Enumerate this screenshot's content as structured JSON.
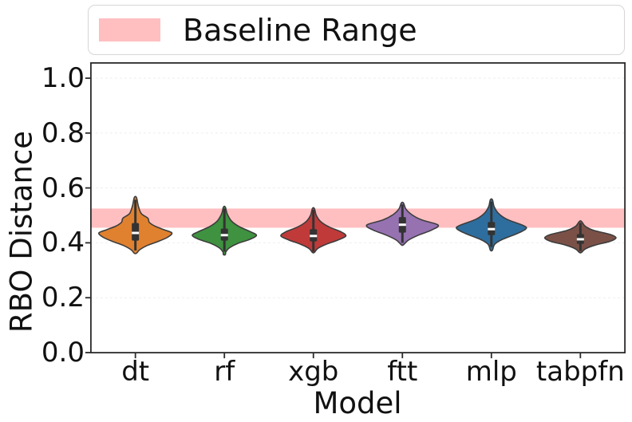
{
  "legend": {
    "label": "Baseline Range",
    "swatch_color": "#ffbfc1"
  },
  "chart_data": {
    "type": "violin",
    "title": "",
    "xlabel": "Model",
    "ylabel": "RBO Distance",
    "ylim": [
      0.0,
      1.055
    ],
    "yticks": [
      0.0,
      0.2,
      0.4,
      0.6,
      0.8,
      1.0
    ],
    "ytick_labels": [
      "0.0",
      "0.2",
      "0.4",
      "0.6",
      "0.8",
      "1.0"
    ],
    "categories": [
      "dt",
      "rf",
      "xgb",
      "ftt",
      "mlp",
      "tabpfn"
    ],
    "grid": "faint dashed horizontal lines at each y tick",
    "legend_position": "above axes, full width",
    "baseline_range": {
      "low": 0.455,
      "high": 0.525,
      "color": "#ffbfc1",
      "label": "Baseline Range"
    },
    "violin_edge_color": "#3d3d3d",
    "box_color": "#333333",
    "median_color": "#ffffff",
    "series": [
      {
        "model": "dt",
        "color": "#e0812f",
        "median": 0.436,
        "q1": 0.408,
        "q3": 0.472,
        "whisker_low": 0.372,
        "whisker_high": 0.557,
        "min": 0.362,
        "max": 0.565,
        "rel_width": 0.82,
        "profile": [
          [
            0.565,
            0.03
          ],
          [
            0.535,
            0.08
          ],
          [
            0.507,
            0.16
          ],
          [
            0.49,
            0.34
          ],
          [
            0.475,
            0.38
          ],
          [
            0.462,
            0.52
          ],
          [
            0.448,
            0.78
          ],
          [
            0.436,
            1.0
          ],
          [
            0.42,
            0.88
          ],
          [
            0.405,
            0.62
          ],
          [
            0.39,
            0.32
          ],
          [
            0.375,
            0.12
          ],
          [
            0.362,
            0.03
          ]
        ]
      },
      {
        "model": "rf",
        "color": "#3f923f",
        "median": 0.428,
        "q1": 0.408,
        "q3": 0.452,
        "whisker_low": 0.368,
        "whisker_high": 0.525,
        "min": 0.357,
        "max": 0.53,
        "rel_width": 0.72,
        "profile": [
          [
            0.53,
            0.03
          ],
          [
            0.505,
            0.09
          ],
          [
            0.48,
            0.22
          ],
          [
            0.46,
            0.45
          ],
          [
            0.44,
            0.82
          ],
          [
            0.427,
            1.0
          ],
          [
            0.412,
            0.78
          ],
          [
            0.398,
            0.42
          ],
          [
            0.382,
            0.16
          ],
          [
            0.368,
            0.05
          ],
          [
            0.357,
            0.03
          ]
        ]
      },
      {
        "model": "xgb",
        "color": "#c03a3a",
        "median": 0.425,
        "q1": 0.405,
        "q3": 0.45,
        "whisker_low": 0.368,
        "whisker_high": 0.52,
        "min": 0.365,
        "max": 0.525,
        "rel_width": 0.73,
        "profile": [
          [
            0.525,
            0.03
          ],
          [
            0.5,
            0.09
          ],
          [
            0.478,
            0.22
          ],
          [
            0.458,
            0.48
          ],
          [
            0.44,
            0.85
          ],
          [
            0.425,
            1.0
          ],
          [
            0.41,
            0.75
          ],
          [
            0.395,
            0.4
          ],
          [
            0.38,
            0.14
          ],
          [
            0.365,
            0.03
          ]
        ]
      },
      {
        "model": "ftt",
        "color": "#9672b1",
        "median": 0.466,
        "q1": 0.437,
        "q3": 0.494,
        "whisker_low": 0.4,
        "whisker_high": 0.54,
        "min": 0.393,
        "max": 0.545,
        "rel_width": 0.8,
        "profile": [
          [
            0.545,
            0.03
          ],
          [
            0.523,
            0.1
          ],
          [
            0.503,
            0.26
          ],
          [
            0.483,
            0.55
          ],
          [
            0.465,
            1.0
          ],
          [
            0.447,
            0.83
          ],
          [
            0.428,
            0.45
          ],
          [
            0.41,
            0.17
          ],
          [
            0.393,
            0.03
          ]
        ]
      },
      {
        "model": "mlp",
        "color": "#2e6e9e",
        "median": 0.45,
        "q1": 0.428,
        "q3": 0.476,
        "whisker_low": 0.385,
        "whisker_high": 0.55,
        "min": 0.373,
        "max": 0.557,
        "rel_width": 0.77,
        "profile": [
          [
            0.557,
            0.03
          ],
          [
            0.532,
            0.08
          ],
          [
            0.508,
            0.2
          ],
          [
            0.486,
            0.45
          ],
          [
            0.462,
            0.95
          ],
          [
            0.45,
            1.0
          ],
          [
            0.432,
            0.72
          ],
          [
            0.413,
            0.33
          ],
          [
            0.395,
            0.1
          ],
          [
            0.373,
            0.03
          ]
        ]
      },
      {
        "model": "tabpfn",
        "color": "#7b5147",
        "median": 0.413,
        "q1": 0.396,
        "q3": 0.432,
        "whisker_low": 0.37,
        "whisker_high": 0.472,
        "min": 0.365,
        "max": 0.478,
        "rel_width": 0.8,
        "profile": [
          [
            0.478,
            0.03
          ],
          [
            0.46,
            0.14
          ],
          [
            0.445,
            0.38
          ],
          [
            0.43,
            0.85
          ],
          [
            0.418,
            1.0
          ],
          [
            0.405,
            0.82
          ],
          [
            0.392,
            0.42
          ],
          [
            0.378,
            0.14
          ],
          [
            0.365,
            0.03
          ]
        ]
      }
    ]
  }
}
